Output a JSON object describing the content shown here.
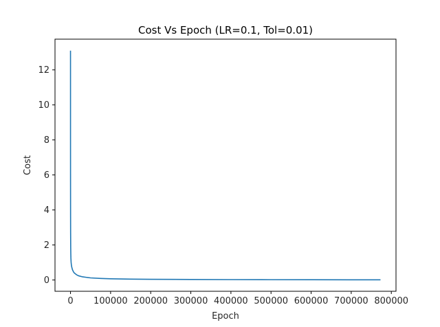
{
  "chart_data": {
    "type": "line",
    "title": "Cost Vs Epoch (LR=0.1, Tol=0.01)",
    "xlabel": "Epoch",
    "ylabel": "Cost",
    "xlim": [
      -38650,
      811650
    ],
    "ylim": [
      -0.645,
      13.755
    ],
    "xticks": [
      0,
      100000,
      200000,
      300000,
      400000,
      500000,
      600000,
      700000,
      800000
    ],
    "yticks": [
      0,
      2,
      4,
      6,
      8,
      10,
      12
    ],
    "grid": false,
    "legend": false,
    "series": [
      {
        "color": "#1f77b4",
        "x": [
          0,
          50,
          100,
          200,
          300,
          500,
          750,
          1000,
          1500,
          2000,
          3000,
          4000,
          5000,
          7500,
          10000,
          15000,
          20000,
          30000,
          40000,
          50000,
          75000,
          100000,
          150000,
          200000,
          300000,
          400000,
          500000,
          600000,
          700000,
          773000
        ],
        "y": [
          13.1,
          8.0,
          5.6,
          3.6,
          2.7,
          1.9,
          1.5,
          1.25,
          1.02,
          0.9,
          0.75,
          0.66,
          0.58,
          0.46,
          0.39,
          0.3,
          0.24,
          0.18,
          0.15,
          0.12,
          0.09,
          0.07,
          0.05,
          0.04,
          0.03,
          0.022,
          0.017,
          0.013,
          0.011,
          0.01
        ]
      }
    ]
  }
}
